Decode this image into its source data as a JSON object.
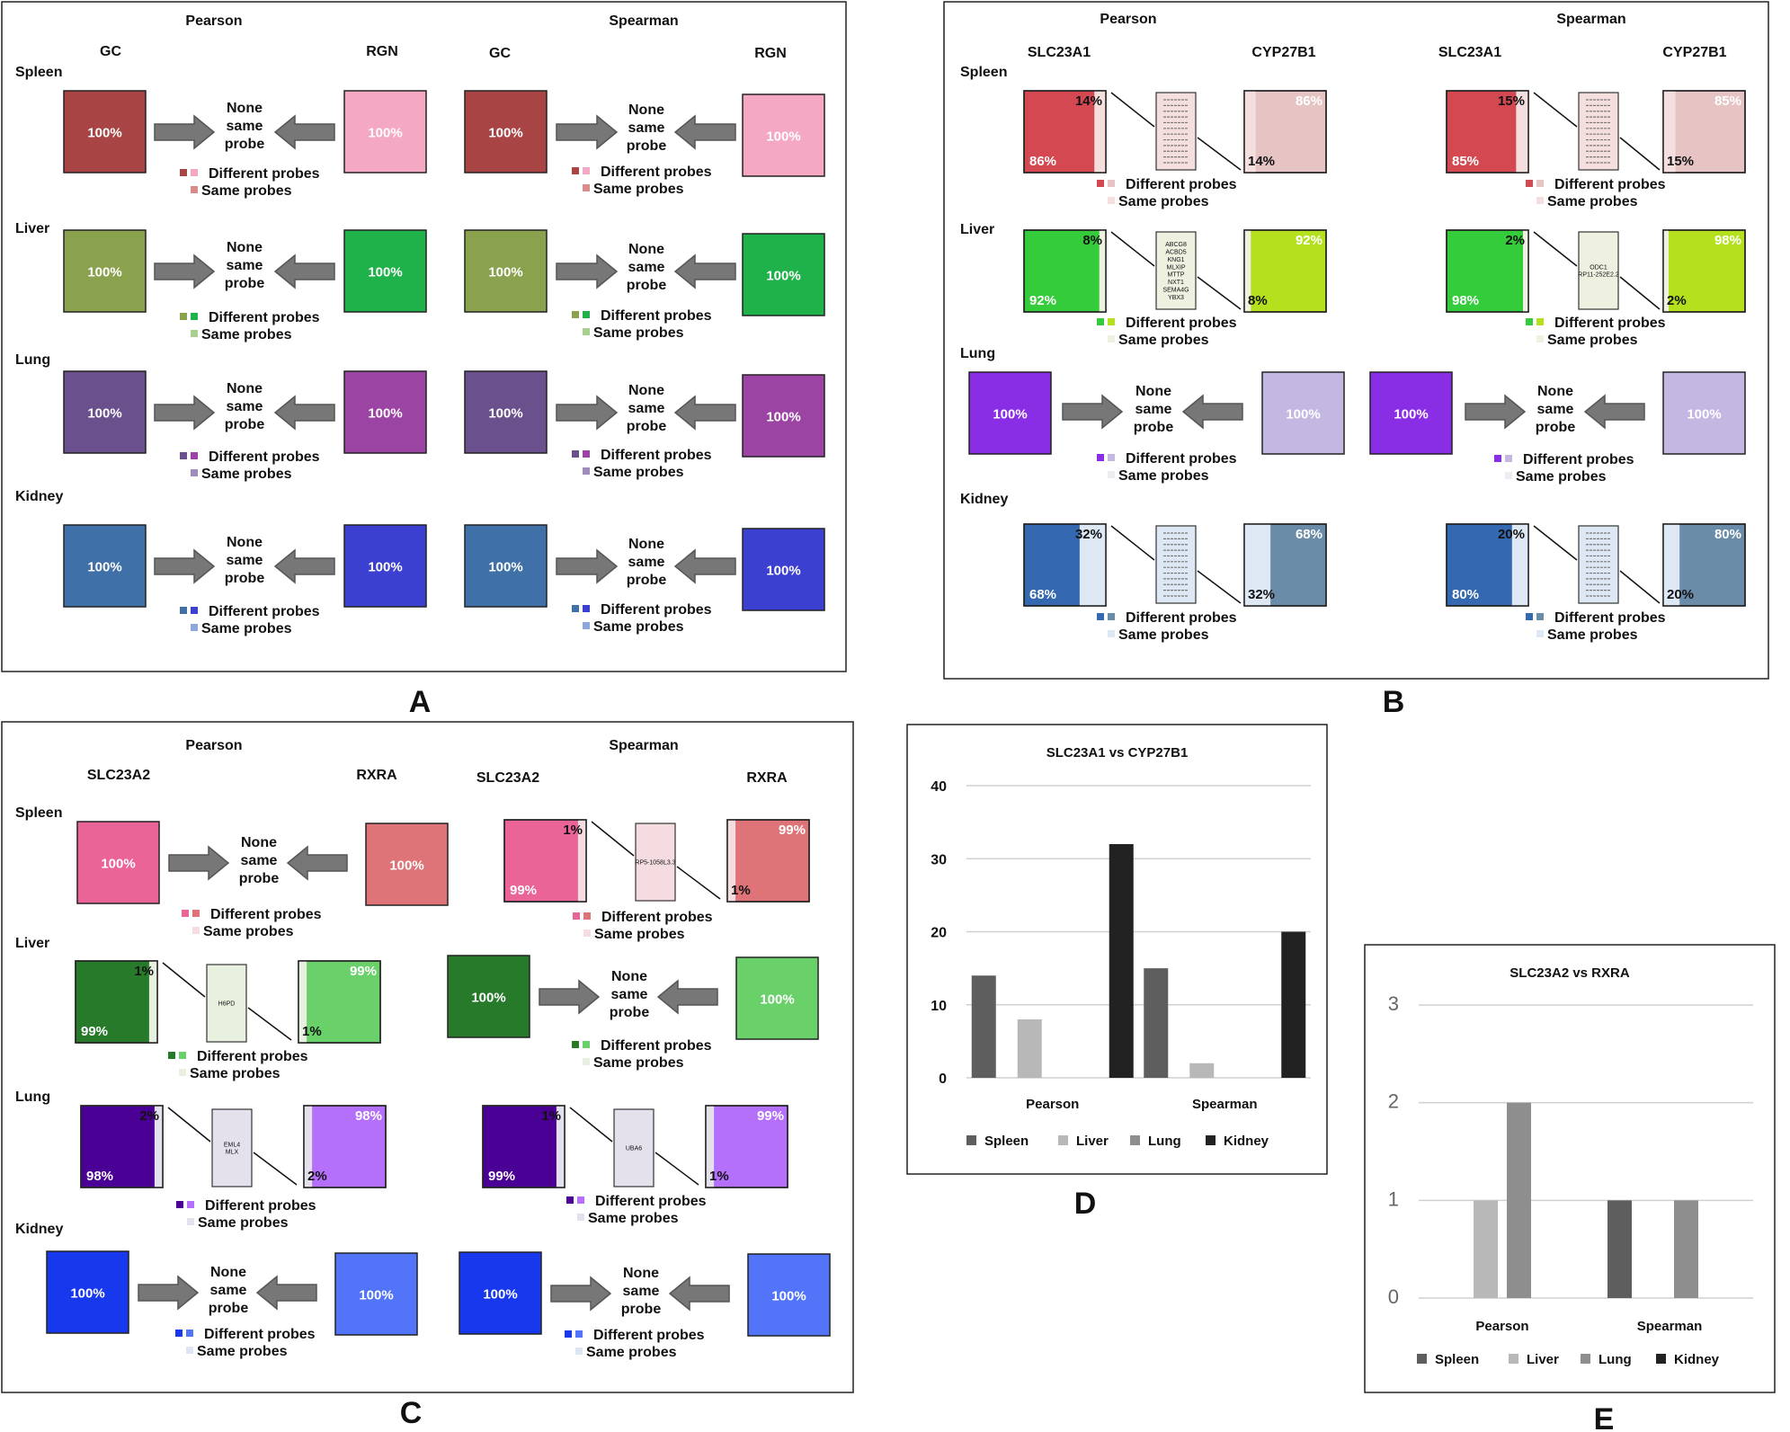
{
  "panels": {
    "A": {
      "letter": "A",
      "pearson": "Pearson",
      "spearman": "Spearman",
      "gene_left": "GC",
      "gene_right": "RGN",
      "rows": [
        {
          "tissue": "Spleen",
          "left": "100%",
          "right": "100%"
        },
        {
          "tissue": "Liver",
          "left": "100%",
          "right": "100%"
        },
        {
          "tissue": "Lung",
          "left": "100%",
          "right": "100%"
        },
        {
          "tissue": "Kidney",
          "left": "100%",
          "right": "100%"
        }
      ]
    },
    "B": {
      "letter": "B",
      "pearson": "Pearson",
      "spearman": "Spearman",
      "gene_left": "SLC23A1",
      "gene_right": "CYP27B1",
      "rows": [
        {
          "tissue": "Spleen",
          "p": {
            "left_main": "86%",
            "left_small": "14%",
            "right_main": "86%",
            "right_small": "14%"
          },
          "s": {
            "left_main": "85%",
            "left_small": "15%",
            "right_main": "85%",
            "right_small": "15%"
          }
        },
        {
          "tissue": "Liver",
          "p": {
            "left_main": "92%",
            "left_small": "8%",
            "right_main": "92%",
            "right_small": "8%"
          },
          "s": {
            "left_main": "98%",
            "left_small": "2%",
            "right_main": "98%",
            "right_small": "2%"
          }
        },
        {
          "tissue": "Lung",
          "left": "100%",
          "right": "100%"
        },
        {
          "tissue": "Kidney",
          "p": {
            "left_main": "68%",
            "left_small": "32%",
            "right_main": "68%",
            "right_small": "32%"
          },
          "s": {
            "left_main": "80%",
            "left_small": "20%",
            "right_main": "80%",
            "right_small": "20%"
          }
        }
      ],
      "gene_lists": {
        "liver_p": [
          "ABCG8",
          "ACBD5",
          "KNG1",
          "MLXIP",
          "MTTP",
          "NXT1",
          "SEMA4G",
          "YBX3"
        ],
        "liver_s": [
          "ODC1",
          "RP11-252E2.2"
        ]
      }
    },
    "C": {
      "letter": "C",
      "pearson": "Pearson",
      "spearman": "Spearman",
      "gene_left": "SLC23A2",
      "gene_right": "RXRA",
      "rows": [
        {
          "tissue": "Spleen",
          "left": "100%",
          "right": "100%",
          "s": {
            "left_main": "99%",
            "left_small": "1%",
            "right_main": "99%",
            "right_small": "1%",
            "genes": [
              "RP5-1058L3.3"
            ]
          }
        },
        {
          "tissue": "Liver",
          "p": {
            "left_main": "99%",
            "left_small": "1%",
            "right_main": "99%",
            "right_small": "1%",
            "genes": [
              "H6PD"
            ]
          },
          "left": "100%",
          "right": "100%"
        },
        {
          "tissue": "Lung",
          "p": {
            "left_main": "98%",
            "left_small": "2%",
            "right_main": "98%",
            "right_small": "2%",
            "genes": [
              "EML4",
              "MLX"
            ]
          },
          "s": {
            "left_main": "99%",
            "left_small": "1%",
            "right_main": "99%",
            "right_small": "1%",
            "genes": [
              "UBA6"
            ]
          }
        },
        {
          "tissue": "Kidney",
          "left": "100%",
          "right": "100%"
        }
      ]
    },
    "D": {
      "letter": "D"
    },
    "E": {
      "letter": "E"
    }
  },
  "common": {
    "none_same_probe": [
      "None",
      "same",
      "probe"
    ],
    "different_probes": "Different probes",
    "same_probes": "Same probes"
  },
  "colors": {
    "spleen_A": [
      "#a84444",
      "#f5a8c4",
      "#d98c8c"
    ],
    "liver_A": [
      "#8aa24e",
      "#20b24a",
      "#a9cf8e"
    ],
    "lung_A": [
      "#6a508c",
      "#9c44a4",
      "#a08cbc"
    ],
    "kidney_A": [
      "#4070a8",
      "#3c40d0",
      "#8ca8d8"
    ],
    "spleen_B": [
      "#d44852",
      "#e6c4c4",
      "#f5dede"
    ],
    "liver_B": [
      "#34cc3a",
      "#b4e01e",
      "#eef0e0"
    ],
    "lung_B": [
      "#8a2ee6",
      "#c4b8e2",
      "#ececf2"
    ],
    "kidney_B": [
      "#3468b0",
      "#6a8ca8",
      "#dde8f4"
    ],
    "spleen_C": [
      "#ea6498",
      "#de7478",
      "#f4dce0"
    ],
    "liver_C": [
      "#267a2a",
      "#6ad06a",
      "#e8f0e0"
    ],
    "lung_C": [
      "#4a0094",
      "#b470fa",
      "#e4e0ec"
    ],
    "kidney_C": [
      "#1838ee",
      "#5274f8",
      "#dde4f4"
    ],
    "chart_colors": [
      "#5e5e5e",
      "#b8b8b8",
      "#8e8e8e",
      "#222222"
    ]
  },
  "chart_data": [
    {
      "type": "bar",
      "title": "SLC23A1 vs CYP27B1",
      "categories": [
        "Pearson",
        "Spearman"
      ],
      "series": [
        {
          "name": "Spleen",
          "values": [
            14,
            15
          ]
        },
        {
          "name": "Liver",
          "values": [
            8,
            2
          ]
        },
        {
          "name": "Lung",
          "values": [
            0,
            0
          ]
        },
        {
          "name": "Kidney",
          "values": [
            32,
            20
          ]
        }
      ],
      "ylim": [
        0,
        40
      ],
      "yticks": [
        "0",
        "10",
        "20",
        "30",
        "40"
      ],
      "grid": true,
      "legend": "bottom"
    },
    {
      "type": "bar",
      "title": "SLC23A2 vs RXRA",
      "categories": [
        "Pearson",
        "Spearman"
      ],
      "series": [
        {
          "name": "Spleen",
          "values": [
            0,
            1
          ]
        },
        {
          "name": "Liver",
          "values": [
            1,
            0
          ]
        },
        {
          "name": "Lung",
          "values": [
            2,
            1
          ]
        },
        {
          "name": "Kidney",
          "values": [
            0,
            0
          ]
        }
      ],
      "ylim": [
        0,
        3
      ],
      "yticks": [
        "0",
        "1",
        "2",
        "3"
      ],
      "grid": true,
      "legend": "bottom"
    }
  ]
}
